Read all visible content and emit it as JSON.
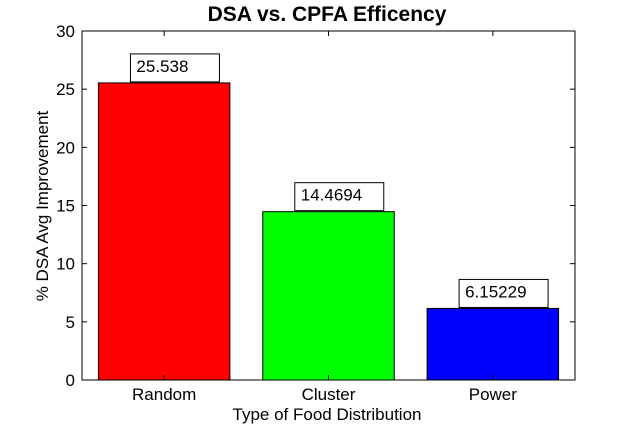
{
  "chart_data": {
    "type": "bar",
    "title": "DSA vs. CPFA Efficency",
    "xlabel": "Type of Food Distribution",
    "ylabel": "% DSA Avg Improvement",
    "categories": [
      "Random",
      "Cluster",
      "Power"
    ],
    "values": [
      25.538,
      14.4694,
      6.15229
    ],
    "value_labels": [
      "25.538",
      "14.4694",
      "6.15229"
    ],
    "colors": [
      "#ff0000",
      "#00ff00",
      "#0000ff"
    ],
    "ylim": [
      0,
      30
    ],
    "yticks": [
      "0",
      "5",
      "10",
      "15",
      "20",
      "25",
      "30"
    ],
    "grid": false,
    "legend": "none"
  }
}
